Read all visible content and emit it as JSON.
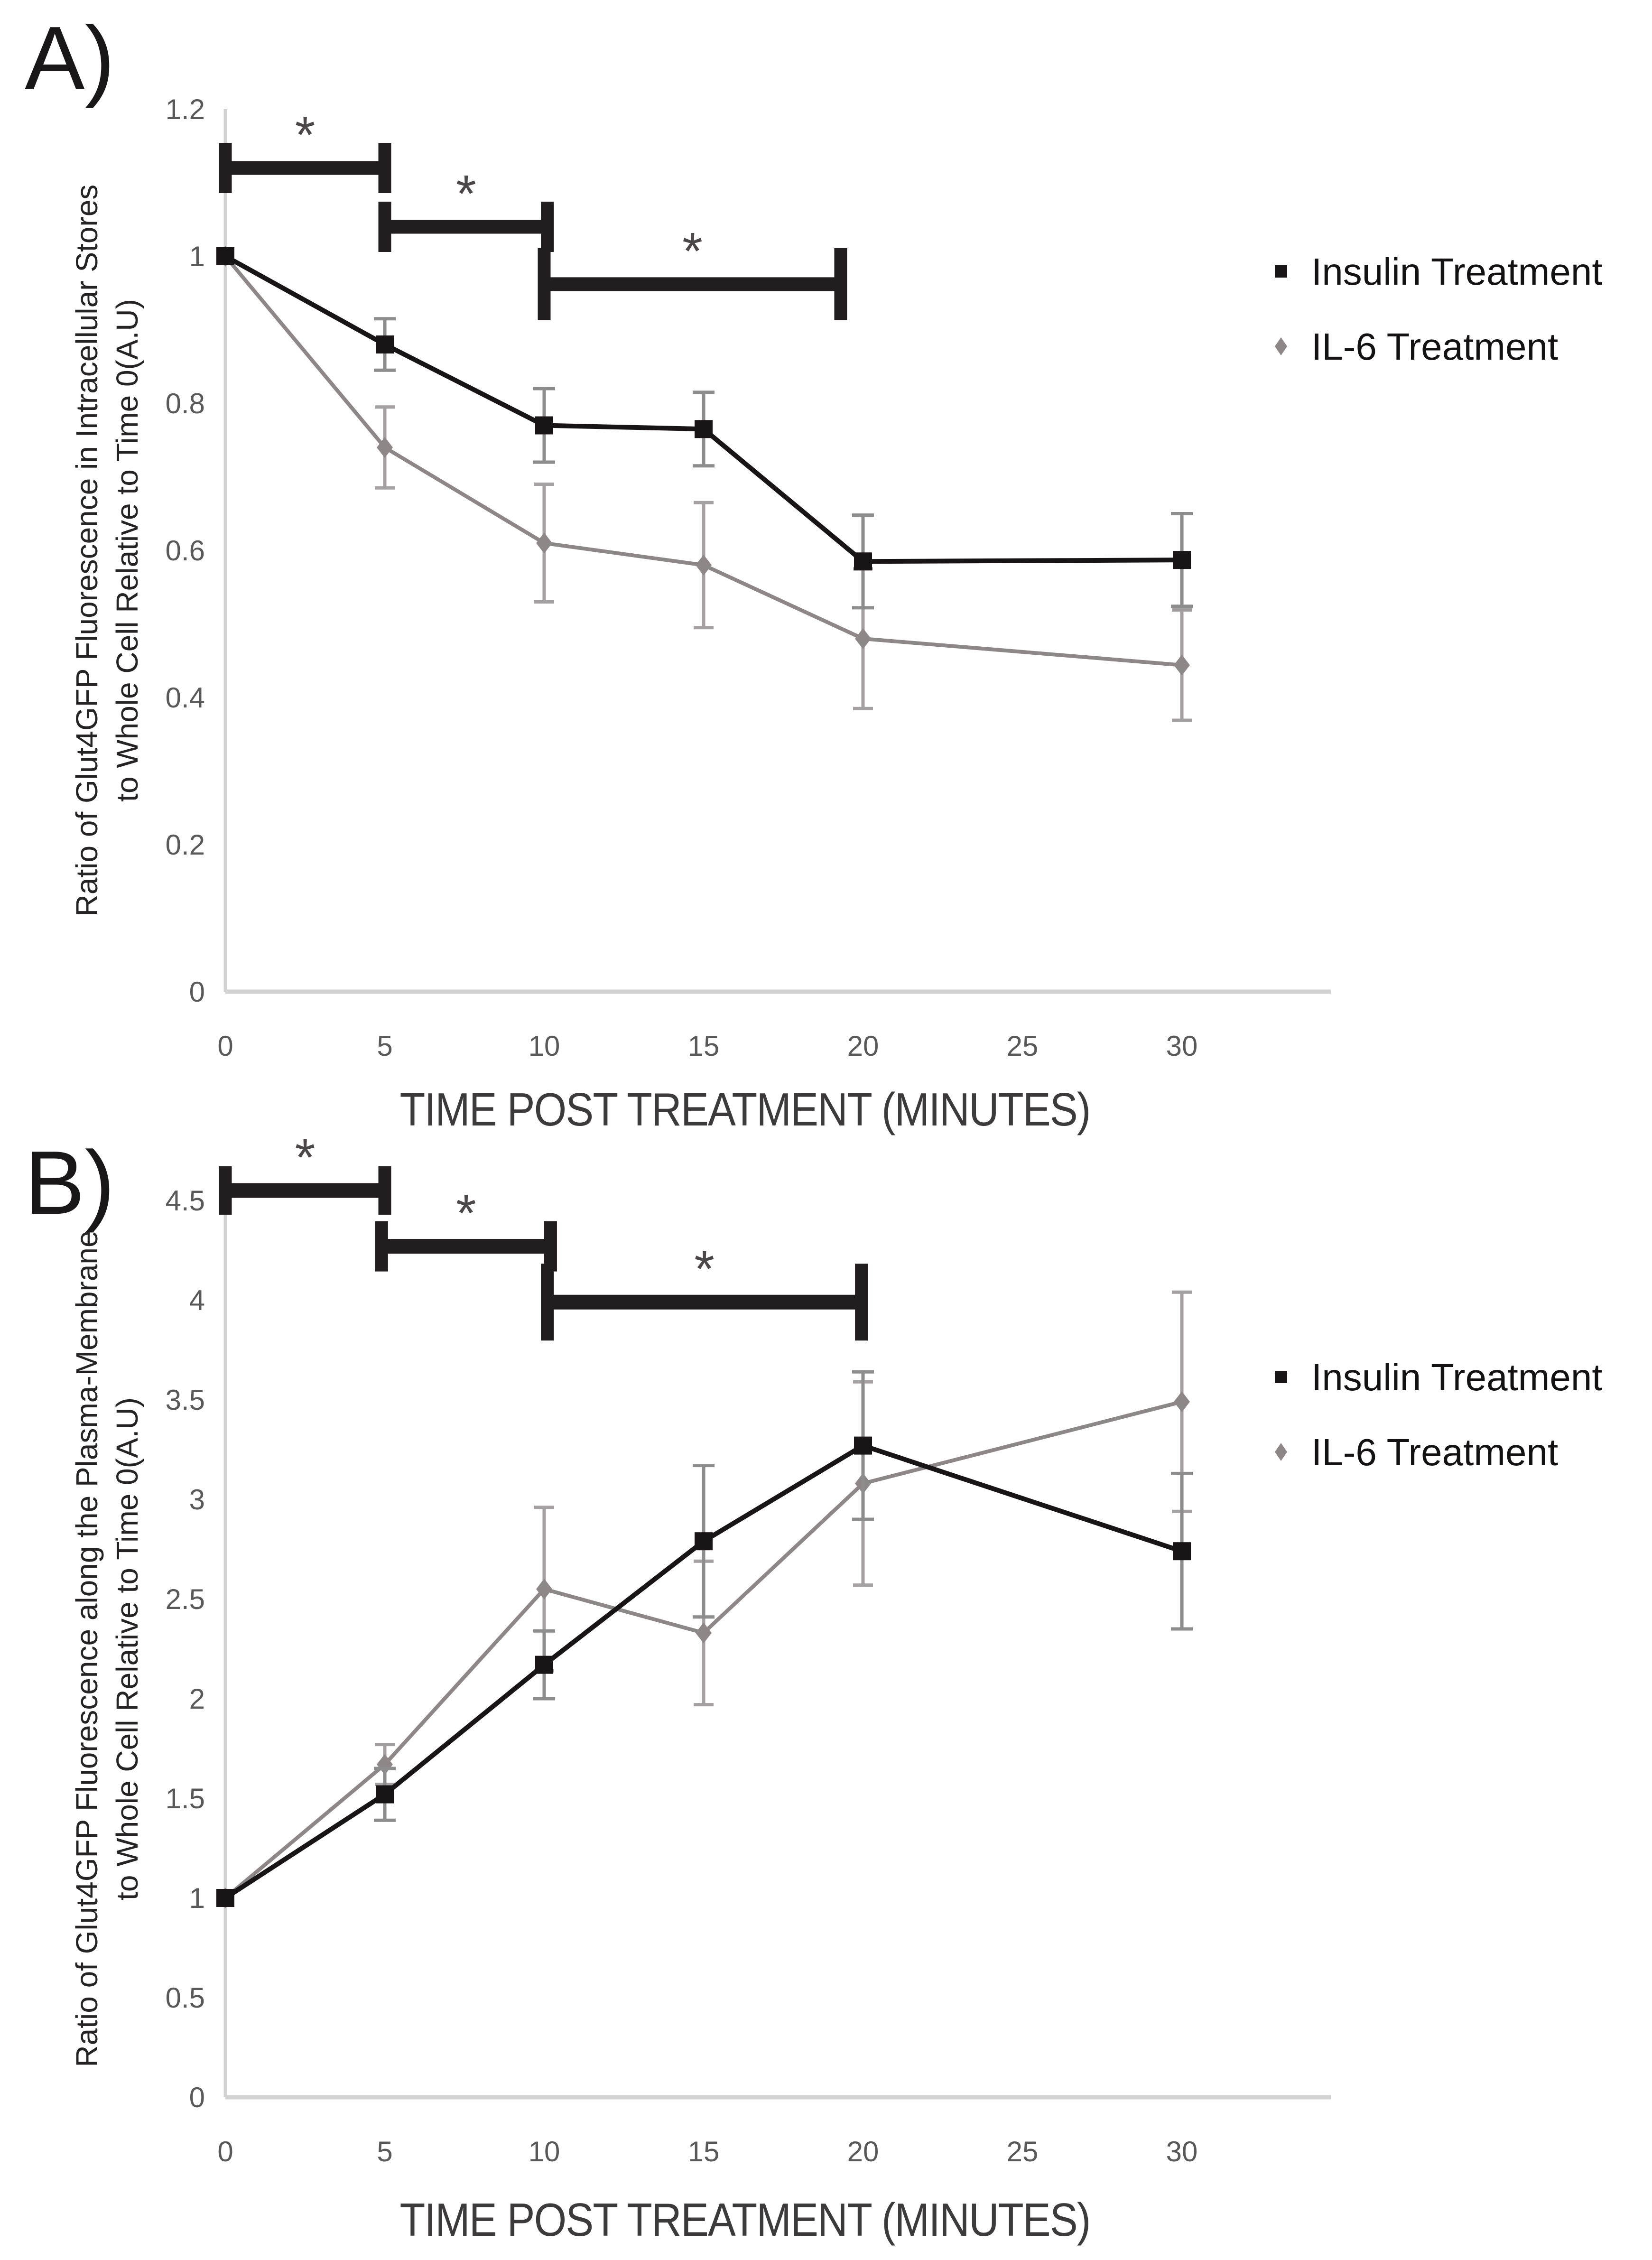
{
  "figure": {
    "background": "#ffffff",
    "panel_a_label": "A)",
    "panel_b_label": "B)"
  },
  "chart_data": [
    {
      "id": "panel-a",
      "panel_label": "A)",
      "type": "line",
      "xlabel": "TIME POST TREATMENT (MINUTES)",
      "ylabel_line1": "Ratio of Glut4GFP Fluorescence in Intracellular Stores",
      "ylabel_line2": "to Whole Cell Relative to Time 0(A.U)",
      "x": [
        0,
        5,
        10,
        15,
        20,
        30
      ],
      "xticks": [
        "0",
        "5",
        "10",
        "15",
        "20",
        "25",
        "30"
      ],
      "xtick_values": [
        0,
        5,
        10,
        15,
        20,
        25,
        30
      ],
      "xlim": [
        0,
        34.7
      ],
      "ylim": [
        0,
        1.2
      ],
      "ytick_values": [
        0,
        0.2,
        0.4,
        0.6,
        0.8,
        1,
        1.2
      ],
      "yticks": [
        "0",
        "0.2",
        "0.4",
        "0.6",
        "0.8",
        "1",
        "1.2"
      ],
      "grid": false,
      "legend_position": "right",
      "series": [
        {
          "name": "Insulin Treatment",
          "marker": "square",
          "color": "#191516",
          "error_color": "#8d8d8d",
          "values": [
            1.0,
            0.88,
            0.77,
            0.765,
            0.585,
            0.587
          ],
          "errors": [
            0,
            0.035,
            0.05,
            0.05,
            0.063,
            0.063
          ]
        },
        {
          "name": "IL-6 Treatment",
          "marker": "diamond",
          "color": "#8e8788",
          "error_color": "#a5a0a1",
          "values": [
            1.0,
            0.74,
            0.61,
            0.58,
            0.48,
            0.444
          ],
          "errors": [
            0,
            0.055,
            0.08,
            0.085,
            0.095,
            0.075
          ]
        }
      ],
      "significance_brackets": [
        {
          "x1": 0,
          "x2": 5,
          "y": 1.12,
          "label": "*"
        },
        {
          "x1": 5,
          "x2": 10.1,
          "y": 1.04,
          "label": "*"
        },
        {
          "x1": 10,
          "x2": 19.3,
          "y": 0.962,
          "label": "*"
        }
      ]
    },
    {
      "id": "panel-b",
      "panel_label": "B)",
      "type": "line",
      "xlabel": "TIME POST TREATMENT (MINUTES)",
      "ylabel_line1": "Ratio of Glut4GFP Fluorescence along the Plasma-Membrane",
      "ylabel_line2": "to Whole Cell Relative to Time 0(A.U)",
      "x": [
        0,
        5,
        10,
        15,
        20,
        30
      ],
      "xticks": [
        "0",
        "5",
        "10",
        "15",
        "20",
        "25",
        "30"
      ],
      "xtick_values": [
        0,
        5,
        10,
        15,
        20,
        25,
        30
      ],
      "xlim": [
        0,
        34.7
      ],
      "ylim": [
        0,
        4.5
      ],
      "ytick_values": [
        0,
        0.5,
        1,
        1.5,
        2,
        2.5,
        3,
        3.5,
        4,
        4.5
      ],
      "yticks": [
        "0",
        "0.5",
        "1",
        "1.5",
        "2",
        "2.5",
        "3",
        "3.5",
        "4",
        "4.5"
      ],
      "grid": false,
      "legend_position": "right",
      "series": [
        {
          "name": "Insulin Treatment",
          "marker": "square",
          "color": "#191516",
          "error_color": "#8d8d8d",
          "values": [
            1.0,
            1.52,
            2.17,
            2.79,
            3.27,
            2.74
          ],
          "errors": [
            0,
            0.13,
            0.17,
            0.38,
            0.37,
            0.39
          ]
        },
        {
          "name": "IL-6 Treatment",
          "marker": "diamond",
          "color": "#8e8788",
          "error_color": "#a5a0a1",
          "values": [
            1.0,
            1.67,
            2.55,
            2.33,
            3.08,
            3.49
          ],
          "errors": [
            0,
            0.1,
            0.41,
            0.36,
            0.51,
            0.55
          ]
        }
      ],
      "significance_brackets": [
        {
          "x1": 0,
          "x2": 5,
          "y": 4.55,
          "label": "*"
        },
        {
          "x1": 4.9,
          "x2": 10.2,
          "y": 4.27,
          "label": "*"
        },
        {
          "x1": 10.1,
          "x2": 19.95,
          "y": 3.99,
          "label": "*"
        }
      ]
    }
  ]
}
